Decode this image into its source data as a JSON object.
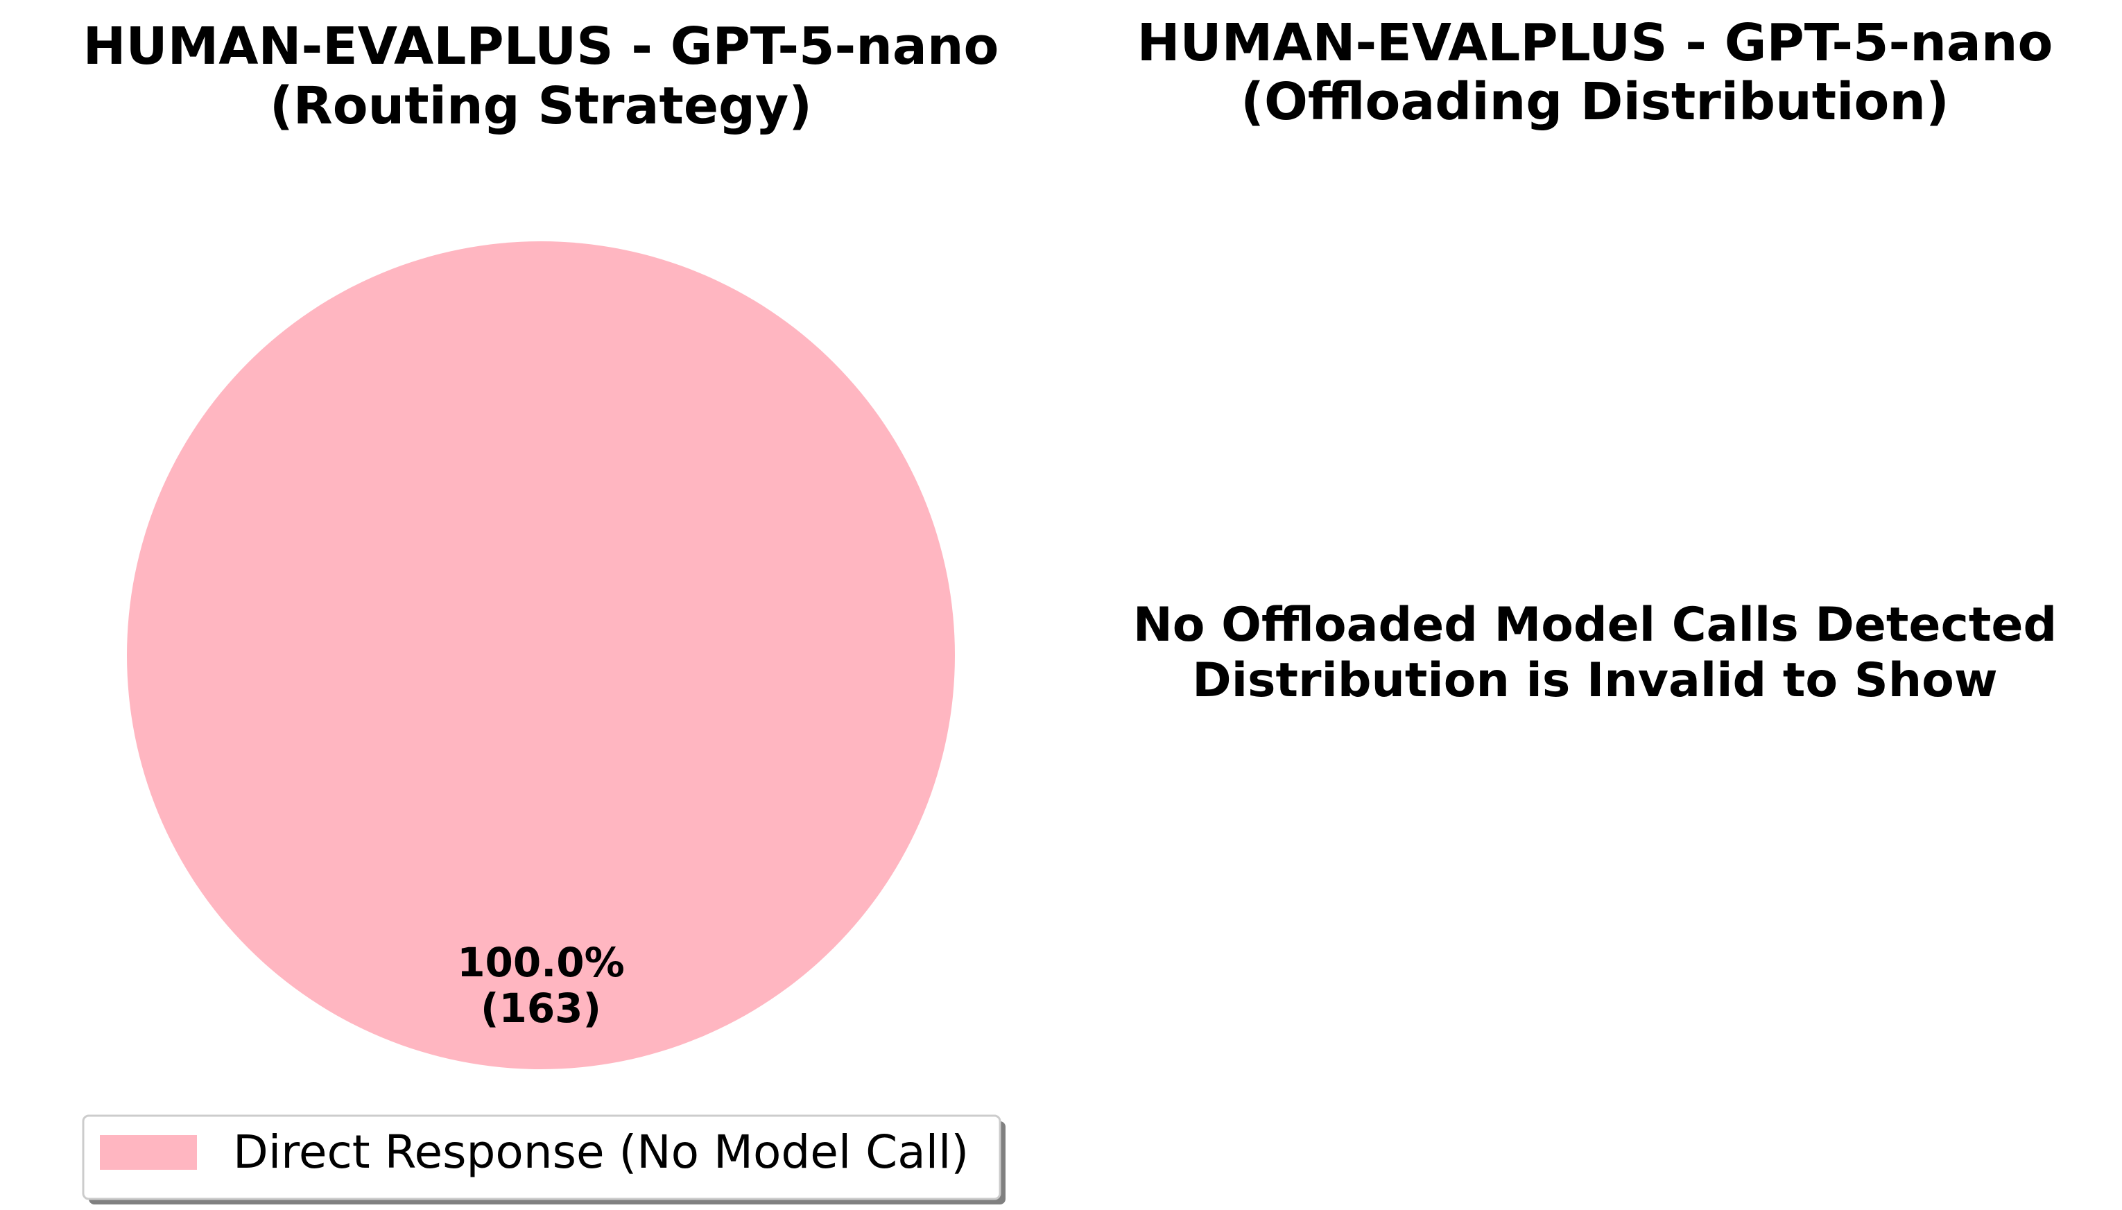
{
  "chart_data": [
    {
      "type": "pie",
      "title": "HUMAN-EVALPLUS - GPT-5-nano",
      "subtitle": "(Routing Strategy)",
      "slices": [
        {
          "label": "Direct Response (No Model Call)",
          "value": 163,
          "percent": 100.0,
          "percent_label": "100.0%",
          "count_label": "(163)",
          "color": "#ffb6c1"
        }
      ],
      "legend": {
        "placement": "bottom-center",
        "entries": [
          "Direct Response (No Model Call)"
        ]
      }
    },
    {
      "type": "pie",
      "title": "HUMAN-EVALPLUS - GPT-5-nano",
      "subtitle": "(Offloading Distribution)",
      "slices": [],
      "message_lines": [
        "No Offloaded Model Calls Detected",
        "Distribution is Invalid to Show"
      ]
    }
  ]
}
